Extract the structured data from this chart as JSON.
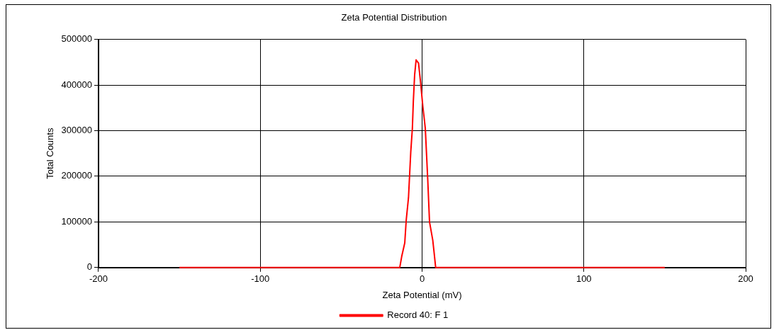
{
  "chart_data": {
    "type": "line",
    "title": "Zeta Potential Distribution",
    "xlabel": "Zeta Potential (mV)",
    "ylabel": "Total Counts",
    "xlim": [
      -200,
      200
    ],
    "xticks": [
      -200,
      -100,
      0,
      100,
      200
    ],
    "ylim": [
      0,
      500000
    ],
    "yticks": [
      0,
      100000,
      200000,
      300000,
      400000,
      500000
    ],
    "grid": true,
    "legend": "bottom",
    "marker": "none",
    "series": [
      {
        "name": "Record 40: F 1",
        "color": "#ff0000",
        "x": [
          -150,
          -13.8,
          -12.6,
          -10.7,
          -9.8,
          -8.4,
          -7,
          -6,
          -5.4,
          -4.6,
          -3.7,
          -2.2,
          -1.1,
          0.5,
          2,
          2.8,
          3.5,
          4.6,
          6.6,
          7.4,
          8.4,
          150
        ],
        "values": [
          0,
          0,
          24000,
          54000,
          104000,
          153000,
          253000,
          305000,
          365000,
          422000,
          455000,
          448000,
          412000,
          352000,
          305000,
          245000,
          193000,
          100000,
          60000,
          34000,
          0,
          0
        ]
      }
    ]
  }
}
